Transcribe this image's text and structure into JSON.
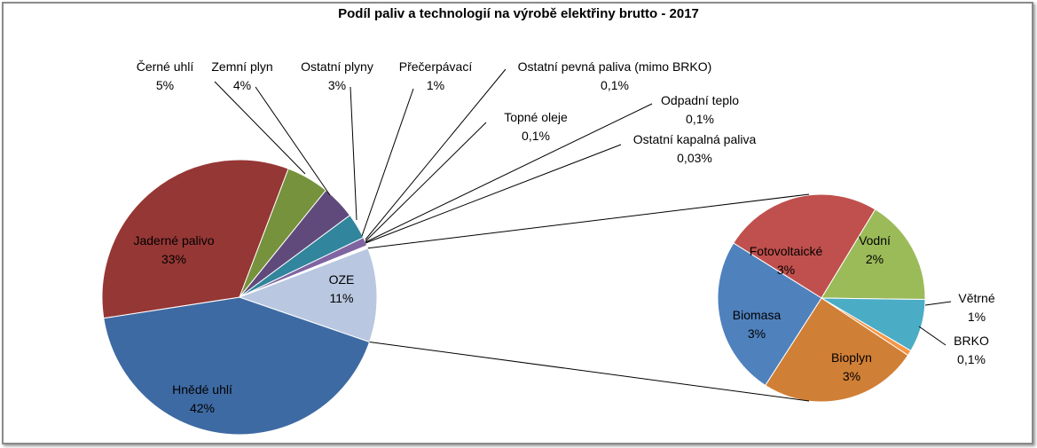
{
  "chart_data": [
    {
      "type": "pie",
      "title": "Podíl paliv a technologií na výrobě elektřiny brutto - 2017",
      "slices": [
        {
          "name": "Hnědé uhlí",
          "value": 42,
          "label": "42%",
          "color": "#3e6aa3"
        },
        {
          "name": "Jaderné palivo",
          "value": 33,
          "label": "33%",
          "color": "#953735"
        },
        {
          "name": "Černé uhlí",
          "value": 5,
          "label": "5%",
          "color": "#76923c"
        },
        {
          "name": "Zemní plyn",
          "value": 4,
          "label": "4%",
          "color": "#604a7b"
        },
        {
          "name": "Ostatní plyny",
          "value": 3,
          "label": "3%",
          "color": "#31859c"
        },
        {
          "name": "Přečerpávací",
          "value": 1,
          "label": "1%",
          "color": "#8064a2"
        },
        {
          "name": "Ostatní pevná paliva (mimo BRKO)",
          "value": 0.1,
          "label": "0,1%",
          "color": "#4f81bd"
        },
        {
          "name": "Topné oleje",
          "value": 0.1,
          "label": "0,1%",
          "color": "#c0504d"
        },
        {
          "name": "Odpadní teplo",
          "value": 0.1,
          "label": "0,1%",
          "color": "#9bbb59"
        },
        {
          "name": "Ostatní kapalná paliva",
          "value": 0.03,
          "label": "0,03%",
          "color": "#f79646"
        },
        {
          "name": "OZE",
          "value": 11,
          "label": "11%",
          "color": "#b9c7e0"
        }
      ]
    },
    {
      "type": "pie",
      "slices": [
        {
          "name": "Fotovoltaické",
          "value": 3,
          "label": "3%",
          "color": "#c0504d"
        },
        {
          "name": "Vodní",
          "value": 2,
          "label": "2%",
          "color": "#9bbb59"
        },
        {
          "name": "Větrné",
          "value": 1,
          "label": "1%",
          "color": "#4bacc6"
        },
        {
          "name": "BRKO",
          "value": 0.1,
          "label": "0,1%",
          "color": "#f79646"
        },
        {
          "name": "Bioplyn",
          "value": 3,
          "label": "3%",
          "color": "#d07f36"
        },
        {
          "name": "Biomasa",
          "value": 3,
          "label": "3%",
          "color": "#4f81bd"
        }
      ]
    }
  ]
}
